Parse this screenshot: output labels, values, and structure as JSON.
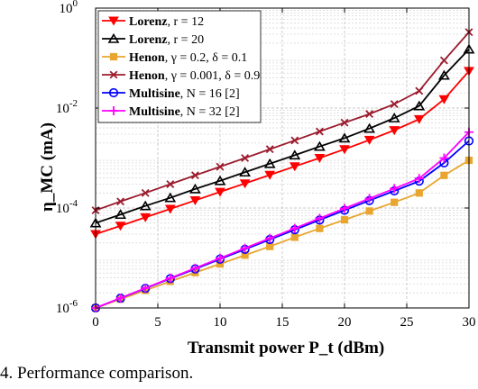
{
  "caption": "4.   Performance comparison.",
  "chart_data": {
    "type": "line",
    "xlabel": "Transmit power P_t (dBm)",
    "ylabel": "η_MC (mA)",
    "x_ticks": [
      0,
      5,
      10,
      15,
      20,
      25,
      30
    ],
    "y_ticks": [
      1e-06,
      0.0001,
      0.01,
      1
    ],
    "y_tick_labels": [
      "10^-6",
      "10^-4",
      "10^-2",
      "10^0"
    ],
    "xlim": [
      0,
      30
    ],
    "ylim": [
      1e-06,
      1
    ],
    "y_scale": "log",
    "grid": true,
    "legend_position": "top-left",
    "x": [
      0,
      2,
      4,
      6,
      8,
      10,
      12,
      14,
      16,
      18,
      20,
      22,
      24,
      26,
      28,
      30
    ],
    "series": [
      {
        "name": "Lorenz, r = 12",
        "color": "#ff0000",
        "marker": "triangle-down",
        "values": [
          3e-05,
          4.4e-05,
          6.5e-05,
          9.6e-05,
          0.000142,
          0.00021,
          0.00031,
          0.00046,
          0.00068,
          0.001,
          0.0015,
          0.0023,
          0.0036,
          0.006,
          0.015,
          0.055
        ]
      },
      {
        "name": "Lorenz, r = 20",
        "color": "#000000",
        "marker": "triangle-up",
        "values": [
          5e-05,
          7.4e-05,
          0.00011,
          0.00016,
          0.00024,
          0.00035,
          0.00052,
          0.00077,
          0.00114,
          0.0017,
          0.0025,
          0.0039,
          0.0063,
          0.011,
          0.045,
          0.15
        ]
      },
      {
        "name": "Henon, γ = 0.2, δ = 0.1",
        "color": "#e8a630",
        "marker": "square",
        "values": [
          1e-06,
          1.5e-06,
          2.25e-06,
          3.4e-06,
          5.1e-06,
          7.6e-06,
          1.14e-05,
          1.7e-05,
          2.6e-05,
          3.9e-05,
          5.8e-05,
          8.7e-05,
          0.00013,
          0.0002,
          0.00045,
          0.0009
        ]
      },
      {
        "name": "Henon, γ = 0.001, δ = 0.9",
        "color": "#9b1c2e",
        "marker": "cross",
        "values": [
          9e-05,
          0.000135,
          0.0002,
          0.0003,
          0.00045,
          0.00067,
          0.001,
          0.0015,
          0.00225,
          0.0034,
          0.0051,
          0.0076,
          0.012,
          0.022,
          0.09,
          0.33
        ]
      },
      {
        "name": "Multisine, N = 16 [2]",
        "color": "#0000ff",
        "marker": "circle",
        "values": [
          1e-06,
          1.57e-06,
          2.46e-06,
          3.86e-06,
          6.05e-06,
          9.5e-06,
          1.49e-05,
          2.34e-05,
          3.67e-05,
          5.75e-05,
          9e-05,
          0.000141,
          0.00022,
          0.000345,
          0.0008,
          0.0022
        ]
      },
      {
        "name": "Multisine, N = 32 [2]",
        "color": "#ff00ff",
        "marker": "plus",
        "values": [
          1e-06,
          1.58e-06,
          2.5e-06,
          3.95e-06,
          6.25e-06,
          9.9e-06,
          1.57e-05,
          2.48e-05,
          3.92e-05,
          6.2e-05,
          9.8e-05,
          0.000155,
          0.000245,
          0.00039,
          0.001,
          0.0033
        ]
      }
    ]
  }
}
